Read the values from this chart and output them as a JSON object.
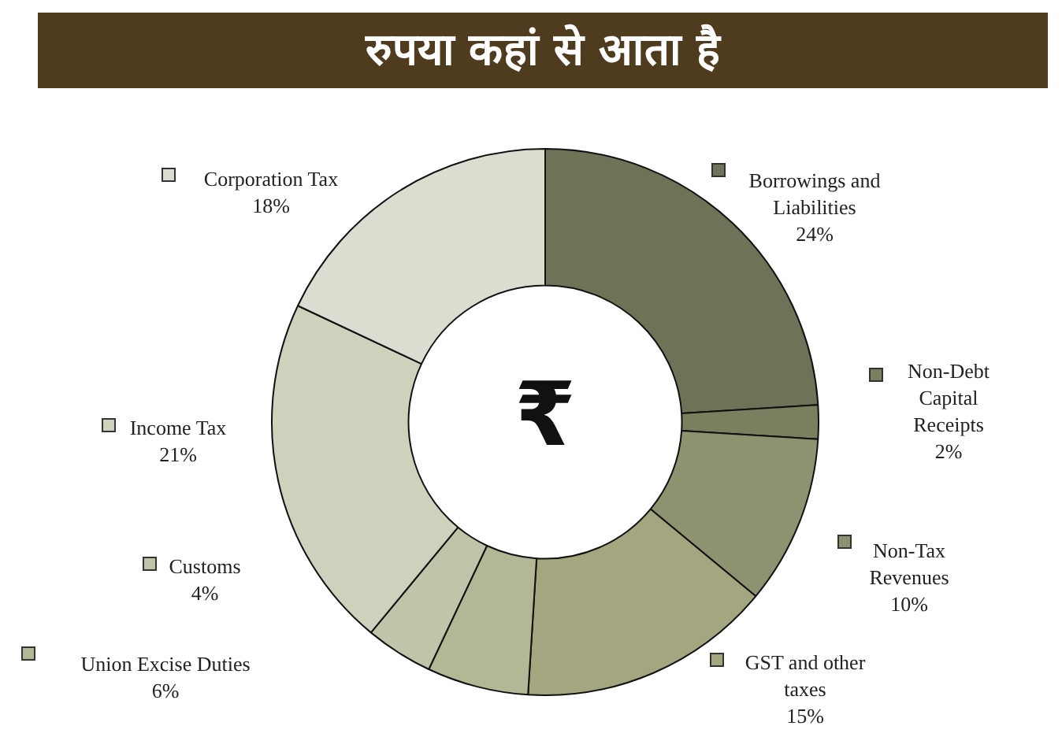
{
  "chart_data": {
    "type": "donut",
    "title": "रुपया कहां से आता है",
    "categories": [
      "Borrowings and Liabilities",
      "Non-Debt Capital Receipts",
      "Non-Tax Revenues",
      "GST and other taxes",
      "Union Excise Duties",
      "Customs",
      "Income Tax",
      "Corporation Tax"
    ],
    "values": [
      24,
      2,
      10,
      15,
      6,
      4,
      21,
      18
    ],
    "colors": [
      "#6f7256",
      "#7b7e5f",
      "#8f9270",
      "#a3a67f",
      "#b4b795",
      "#c2c4aa",
      "#cfd1bd",
      "#dcddd0"
    ],
    "annotations": [
      "₹"
    ],
    "value_labels": [
      "24%",
      "2%",
      "10%",
      "15%",
      "6%",
      "4%",
      "21%",
      "18%"
    ],
    "legend": "bottom left"
  }
}
